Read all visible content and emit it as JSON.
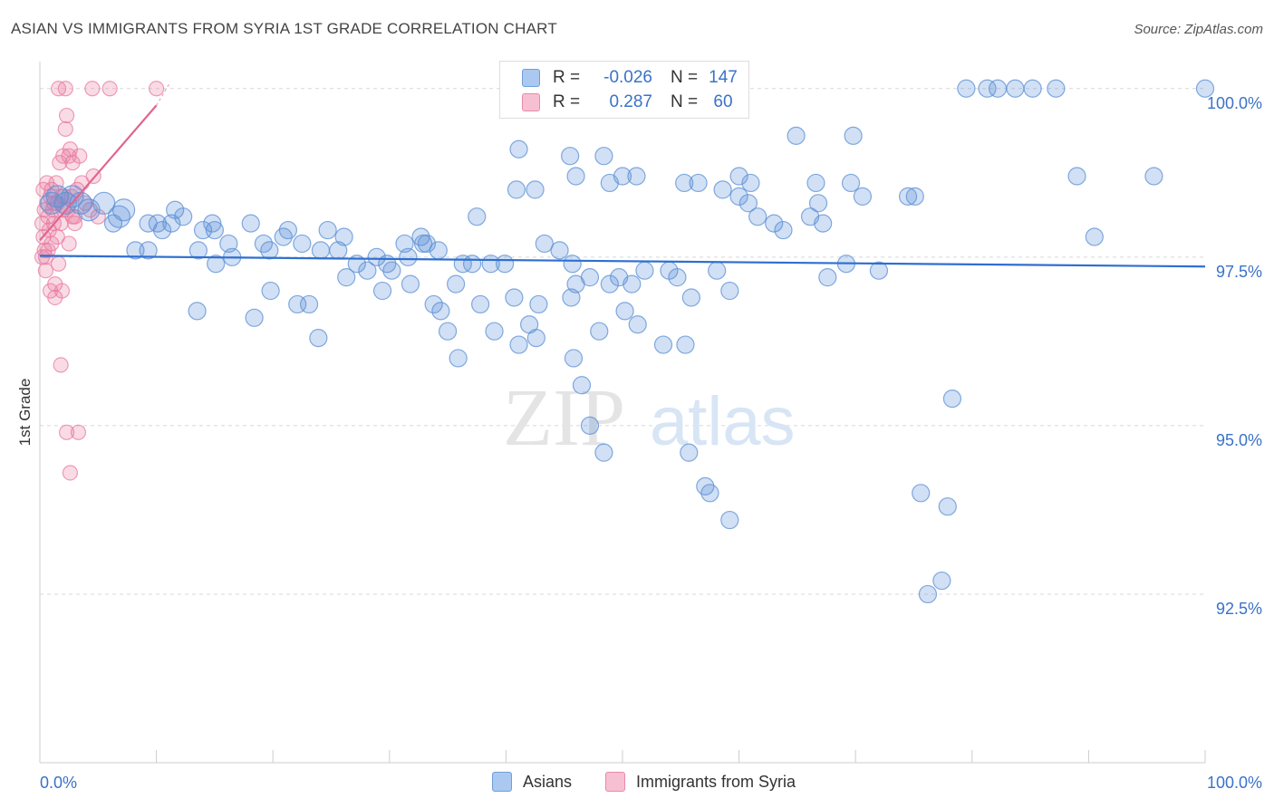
{
  "title": "ASIAN VS IMMIGRANTS FROM SYRIA 1ST GRADE CORRELATION CHART",
  "source": "Source: ZipAtlas.com",
  "watermark": {
    "zip": "ZIP",
    "atlas": "atlas"
  },
  "legend_stats": [
    {
      "r_label": "R =",
      "r_value": "-0.026",
      "n_label": "N =",
      "n_value": "147",
      "fill": "#aac8f0",
      "stroke": "#6f9fd8"
    },
    {
      "r_label": "R =",
      "r_value": "0.287",
      "n_label": "N =",
      "n_value": "60",
      "fill": "#f7c0d2",
      "stroke": "#e88aaa"
    }
  ],
  "bottom_legend": [
    {
      "label": "Asians",
      "fill": "#aac8f0",
      "stroke": "#6f9fd8"
    },
    {
      "label": "Immigrants from Syria",
      "fill": "#f7c0d2",
      "stroke": "#e88aaa"
    }
  ],
  "colors": {
    "asian": "#5b8fd6",
    "syria": "#e97ca0",
    "asian_line": "#2f6fd0",
    "syria_line": "#e0648f",
    "tick_label": "#3a72c8"
  },
  "chart_data": {
    "type": "scatter",
    "title": "ASIAN VS IMMIGRANTS FROM SYRIA 1ST GRADE CORRELATION CHART",
    "xlabel": "",
    "ylabel": "1st Grade",
    "xlim": [
      0,
      100
    ],
    "ylim": [
      90.0,
      100.4
    ],
    "x_tick_labels": [
      "0.0%",
      "100.0%"
    ],
    "y_ticks": [
      92.5,
      95.0,
      97.5,
      100.0
    ],
    "y_tick_labels": [
      "92.5%",
      "95.0%",
      "97.5%",
      "100.0%"
    ],
    "grid": true,
    "series": [
      {
        "name": "Asians",
        "r": -0.026,
        "n": 147,
        "trend": {
          "x": [
            0,
            100
          ],
          "y": [
            97.52,
            97.36
          ]
        },
        "points": [
          [
            1.0,
            98.3
          ],
          [
            1.5,
            98.4
          ],
          [
            2.2,
            98.3
          ],
          [
            2.8,
            98.4
          ],
          [
            3.5,
            98.3
          ],
          [
            4.2,
            98.2
          ],
          [
            5.5,
            98.3
          ],
          [
            6.8,
            98.1
          ],
          [
            7.2,
            98.2
          ],
          [
            6.3,
            98.0
          ],
          [
            9.3,
            98.0
          ],
          [
            8.2,
            97.6
          ],
          [
            10.1,
            98.0
          ],
          [
            11.3,
            98.0
          ],
          [
            11.6,
            98.2
          ],
          [
            12.3,
            98.1
          ],
          [
            13.6,
            97.6
          ],
          [
            14.0,
            97.9
          ],
          [
            15.0,
            97.9
          ],
          [
            15.1,
            97.4
          ],
          [
            13.5,
            96.7
          ],
          [
            16.2,
            97.7
          ],
          [
            16.5,
            97.5
          ],
          [
            14.8,
            98.0
          ],
          [
            18.4,
            96.6
          ],
          [
            18.1,
            98.0
          ],
          [
            19.2,
            97.7
          ],
          [
            19.7,
            97.6
          ],
          [
            20.9,
            97.8
          ],
          [
            21.3,
            97.9
          ],
          [
            22.5,
            97.7
          ],
          [
            22.1,
            96.8
          ],
          [
            23.1,
            96.8
          ],
          [
            24.1,
            97.6
          ],
          [
            24.7,
            97.9
          ],
          [
            25.6,
            97.6
          ],
          [
            26.1,
            97.8
          ],
          [
            27.2,
            97.4
          ],
          [
            28.1,
            97.3
          ],
          [
            28.9,
            97.5
          ],
          [
            29.4,
            97.0
          ],
          [
            29.8,
            97.4
          ],
          [
            30.2,
            97.3
          ],
          [
            31.3,
            97.7
          ],
          [
            31.6,
            97.5
          ],
          [
            32.7,
            97.8
          ],
          [
            32.9,
            97.7
          ],
          [
            33.2,
            97.7
          ],
          [
            33.8,
            96.8
          ],
          [
            34.2,
            97.6
          ],
          [
            34.4,
            96.7
          ],
          [
            35.0,
            96.4
          ],
          [
            35.7,
            97.1
          ],
          [
            36.3,
            97.4
          ],
          [
            37.1,
            97.4
          ],
          [
            37.8,
            96.8
          ],
          [
            38.7,
            97.4
          ],
          [
            39.0,
            96.4
          ],
          [
            39.9,
            97.4
          ],
          [
            40.7,
            96.9
          ],
          [
            41.1,
            96.2
          ],
          [
            42.0,
            96.5
          ],
          [
            42.6,
            96.3
          ],
          [
            42.8,
            96.8
          ],
          [
            43.3,
            97.7
          ],
          [
            44.6,
            97.6
          ],
          [
            45.6,
            96.9
          ],
          [
            45.7,
            97.4
          ],
          [
            46.0,
            97.1
          ],
          [
            45.8,
            96.0
          ],
          [
            46.5,
            95.6
          ],
          [
            47.2,
            97.2
          ],
          [
            47.2,
            95.0
          ],
          [
            48.0,
            96.4
          ],
          [
            48.9,
            97.1
          ],
          [
            48.4,
            94.6
          ],
          [
            49.7,
            97.2
          ],
          [
            50.2,
            96.7
          ],
          [
            50.8,
            97.1
          ],
          [
            51.3,
            96.5
          ],
          [
            51.9,
            97.3
          ],
          [
            53.5,
            96.2
          ],
          [
            54.0,
            97.3
          ],
          [
            54.7,
            97.2
          ],
          [
            55.4,
            96.2
          ],
          [
            55.7,
            94.6
          ],
          [
            55.9,
            96.9
          ],
          [
            57.1,
            94.1
          ],
          [
            57.5,
            94.0
          ],
          [
            58.1,
            97.3
          ],
          [
            59.2,
            93.6
          ],
          [
            59.2,
            97.0
          ],
          [
            60.0,
            98.4
          ],
          [
            60.8,
            98.3
          ],
          [
            61.6,
            98.1
          ],
          [
            63.0,
            98.0
          ],
          [
            63.8,
            97.9
          ],
          [
            64.9,
            99.3
          ],
          [
            66.1,
            98.1
          ],
          [
            66.8,
            98.3
          ],
          [
            67.6,
            97.2
          ],
          [
            69.2,
            97.4
          ],
          [
            69.8,
            99.3
          ],
          [
            70.6,
            98.4
          ],
          [
            72.0,
            97.3
          ],
          [
            74.5,
            98.4
          ],
          [
            75.1,
            98.4
          ],
          [
            75.6,
            94.0
          ],
          [
            76.2,
            92.5
          ],
          [
            77.4,
            92.7
          ],
          [
            77.9,
            93.8
          ],
          [
            78.3,
            95.4
          ],
          [
            79.5,
            100.0
          ],
          [
            81.3,
            100.0
          ],
          [
            82.2,
            100.0
          ],
          [
            83.7,
            100.0
          ],
          [
            85.2,
            100.0
          ],
          [
            87.2,
            100.0
          ],
          [
            89.0,
            98.7
          ],
          [
            90.5,
            97.8
          ],
          [
            95.6,
            98.7
          ],
          [
            100.0,
            100.0
          ],
          [
            9.3,
            97.6
          ],
          [
            10.5,
            97.9
          ],
          [
            19.8,
            97.0
          ],
          [
            23.9,
            96.3
          ],
          [
            26.3,
            97.2
          ],
          [
            31.8,
            97.1
          ],
          [
            35.9,
            96.0
          ],
          [
            37.5,
            98.1
          ],
          [
            40.9,
            98.5
          ],
          [
            42.5,
            98.5
          ],
          [
            46.0,
            98.7
          ],
          [
            48.9,
            98.6
          ],
          [
            50.0,
            98.7
          ],
          [
            51.2,
            98.7
          ],
          [
            55.3,
            98.6
          ],
          [
            56.5,
            98.6
          ],
          [
            58.6,
            98.5
          ],
          [
            60.0,
            98.7
          ],
          [
            61.0,
            98.6
          ],
          [
            66.6,
            98.6
          ],
          [
            67.2,
            98.0
          ],
          [
            69.6,
            98.6
          ],
          [
            45.5,
            99.0
          ],
          [
            48.4,
            99.0
          ],
          [
            41.1,
            99.1
          ]
        ]
      },
      {
        "name": "Immigrants from Syria",
        "r": 0.287,
        "n": 60,
        "trend": {
          "x": [
            0,
            10
          ],
          "y": [
            97.75,
            99.75
          ]
        },
        "points": [
          [
            0.2,
            98.0
          ],
          [
            0.3,
            97.8
          ],
          [
            0.4,
            97.6
          ],
          [
            0.5,
            97.5
          ],
          [
            0.6,
            98.3
          ],
          [
            0.7,
            98.1
          ],
          [
            0.8,
            97.9
          ],
          [
            0.9,
            98.4
          ],
          [
            1.0,
            97.7
          ],
          [
            1.1,
            98.2
          ],
          [
            1.2,
            98.0
          ],
          [
            1.3,
            97.1
          ],
          [
            1.4,
            98.6
          ],
          [
            1.5,
            98.3
          ],
          [
            1.6,
            97.4
          ],
          [
            1.7,
            98.9
          ],
          [
            1.8,
            98.0
          ],
          [
            1.9,
            97.0
          ],
          [
            2.0,
            99.0
          ],
          [
            2.1,
            98.4
          ],
          [
            2.2,
            99.4
          ],
          [
            2.3,
            99.6
          ],
          [
            2.4,
            98.2
          ],
          [
            2.5,
            97.7
          ],
          [
            2.6,
            99.1
          ],
          [
            2.7,
            98.4
          ],
          [
            2.8,
            98.9
          ],
          [
            3.0,
            98.1
          ],
          [
            3.2,
            98.5
          ],
          [
            3.4,
            99.0
          ],
          [
            3.6,
            98.6
          ],
          [
            3.9,
            98.3
          ],
          [
            4.3,
            98.2
          ],
          [
            4.6,
            98.7
          ],
          [
            5.0,
            98.1
          ],
          [
            0.5,
            97.3
          ],
          [
            0.9,
            97.0
          ],
          [
            1.3,
            96.9
          ],
          [
            1.8,
            95.9
          ],
          [
            2.3,
            94.9
          ],
          [
            2.6,
            94.3
          ],
          [
            3.3,
            94.9
          ],
          [
            1.6,
            100.0
          ],
          [
            2.2,
            100.0
          ],
          [
            4.5,
            100.0
          ],
          [
            6.0,
            100.0
          ],
          [
            10.0,
            100.0
          ],
          [
            0.4,
            98.2
          ],
          [
            0.7,
            97.6
          ],
          [
            1.0,
            98.5
          ],
          [
            1.5,
            97.8
          ],
          [
            2.0,
            98.2
          ],
          [
            2.5,
            99.0
          ],
          [
            3.0,
            98.0
          ],
          [
            1.2,
            98.3
          ],
          [
            0.3,
            98.5
          ],
          [
            0.6,
            98.6
          ],
          [
            1.9,
            98.4
          ],
          [
            2.8,
            98.1
          ],
          [
            0.2,
            97.5
          ]
        ]
      }
    ]
  }
}
